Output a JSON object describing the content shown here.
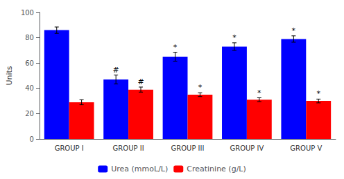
{
  "chart_data": {
    "type": "bar",
    "categories": [
      "GROUP I",
      "GROUP II",
      "GROUP III",
      "GROUP IV",
      "GROUP V"
    ],
    "series": [
      {
        "name": "Urea (mmoL/L)",
        "color": "#0000FF",
        "values": [
          86,
          47,
          65,
          73,
          79
        ],
        "errors": [
          2.5,
          3.5,
          3.5,
          3.0,
          2.5
        ],
        "annotations": [
          null,
          "#",
          "*",
          "*",
          "*"
        ]
      },
      {
        "name": "Creatinine (g/L)",
        "color": "#FF0000",
        "values": [
          29,
          39,
          35,
          31,
          30
        ],
        "errors": [
          2.0,
          2.0,
          1.5,
          1.5,
          1.5
        ],
        "annotations": [
          null,
          "#",
          "*",
          "*",
          "*"
        ]
      }
    ],
    "ylabel": "Units",
    "ylim": [
      0,
      100
    ],
    "yticks": [
      0,
      20,
      40,
      60,
      80,
      100
    ],
    "grid": false,
    "legend": "bottom"
  }
}
